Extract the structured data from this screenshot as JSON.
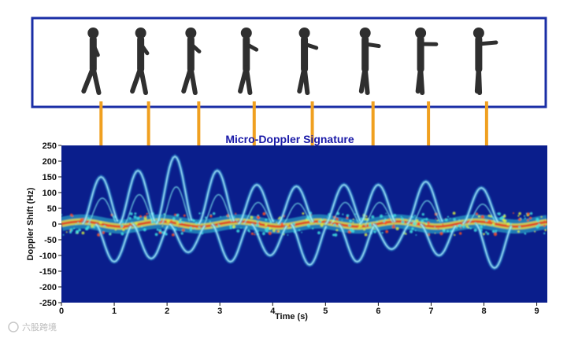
{
  "chart_data": {
    "type": "heatmap",
    "title": "Micro-Doppler Signature",
    "xlabel": "Time (s)",
    "ylabel": "Doppler Shift (Hz)",
    "xlim": [
      0,
      9.2
    ],
    "ylim": [
      -250,
      250
    ],
    "x_ticks": [
      0,
      1,
      2,
      3,
      4,
      5,
      6,
      7,
      8,
      9
    ],
    "y_ticks": [
      250,
      200,
      150,
      100,
      50,
      0,
      -50,
      -100,
      -150,
      -200,
      -250
    ],
    "grid": false,
    "colormap": "jet",
    "background_color": "#0a1e8c",
    "gait_peaks": [
      {
        "t": 0.75,
        "pos_hz": 150,
        "neg_hz": -120
      },
      {
        "t": 1.45,
        "pos_hz": 170,
        "neg_hz": -110
      },
      {
        "t": 2.15,
        "pos_hz": 215,
        "neg_hz": -90
      },
      {
        "t": 2.95,
        "pos_hz": 170,
        "neg_hz": -120
      },
      {
        "t": 3.7,
        "pos_hz": 125,
        "neg_hz": -100
      },
      {
        "t": 4.45,
        "pos_hz": 120,
        "neg_hz": -130
      },
      {
        "t": 5.35,
        "pos_hz": 125,
        "neg_hz": -120
      },
      {
        "t": 6.0,
        "pos_hz": 125,
        "neg_hz": -80
      },
      {
        "t": 6.9,
        "pos_hz": 135,
        "neg_hz": -100
      },
      {
        "t": 7.95,
        "pos_hz": 115,
        "neg_hz": -140
      }
    ],
    "frames": {
      "count": 8,
      "connector_times_s": [
        0.75,
        1.65,
        2.6,
        3.65,
        4.75,
        5.9,
        6.95,
        8.05
      ]
    }
  },
  "watermark": "六股跨境",
  "colors": {
    "frame_border": "#1a2ea6",
    "connector": "#f0a020",
    "figure": "#2f2f2f",
    "title": "#1a1aa8"
  }
}
